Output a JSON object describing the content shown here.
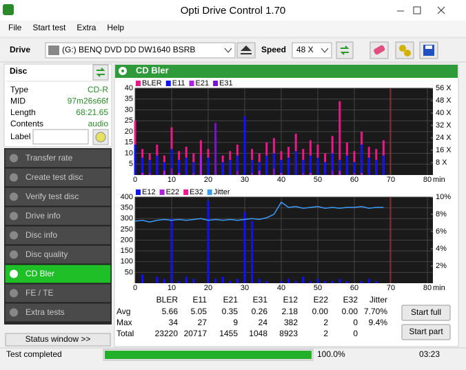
{
  "window": {
    "title": "Opti Drive Control 1.70"
  },
  "menu": [
    "File",
    "Start test",
    "Extra",
    "Help"
  ],
  "drive": {
    "label": "Drive",
    "device": "(G:)   BENQ DVD DD DW1640 BSRB",
    "speed_label": "Speed",
    "speed": "48 X"
  },
  "disc": {
    "header": "Disc",
    "fields": [
      [
        "Type",
        "CD-R"
      ],
      [
        "MID",
        "97m26s66f"
      ],
      [
        "Length",
        "68:21.65"
      ],
      [
        "Contents",
        "audio"
      ]
    ],
    "label_label": "Label"
  },
  "sidebar": {
    "items": [
      "Transfer rate",
      "Create test disc",
      "Verify test disc",
      "Drive info",
      "Disc info",
      "Disc quality",
      "CD Bler",
      "FE / TE",
      "Extra tests"
    ],
    "active": "CD Bler",
    "status_window": "Status window >>"
  },
  "panel_title": "CD Bler",
  "chart_data": [
    {
      "type": "bar",
      "x": [
        0,
        2,
        4,
        6,
        8,
        10,
        12,
        14,
        16,
        18,
        20,
        22,
        24,
        26,
        28,
        30,
        32,
        34,
        36,
        38,
        40,
        42,
        44,
        46,
        48,
        50,
        52,
        54,
        56,
        58,
        60,
        62,
        64,
        66,
        68
      ],
      "xlim": [
        0,
        80
      ],
      "xticks": [
        0,
        10,
        20,
        30,
        40,
        50,
        60,
        70,
        80
      ],
      "xlabel": "min",
      "ylim": [
        0,
        40
      ],
      "yticks": [
        5,
        10,
        15,
        20,
        25,
        30,
        35,
        40
      ],
      "y2lim": [
        0,
        56
      ],
      "y2ticks": [
        {
          "value": 8,
          "label": "8 X"
        },
        {
          "value": 16,
          "label": "16 X"
        },
        {
          "value": 24,
          "label": "24 X"
        },
        {
          "value": 32,
          "label": "32 X"
        },
        {
          "value": 40,
          "label": "40 X"
        },
        {
          "value": 48,
          "label": "48 X"
        },
        {
          "value": 56,
          "label": "56 X"
        }
      ],
      "grid": true,
      "series": [
        {
          "name": "BLER",
          "color": "#f0168c",
          "values": [
            25,
            12,
            10,
            14,
            9,
            22,
            11,
            13,
            10,
            16,
            12,
            18,
            9,
            11,
            14,
            20,
            12,
            10,
            15,
            17,
            11,
            13,
            19,
            12,
            16,
            14,
            10,
            18,
            34,
            15,
            11,
            20,
            13,
            12,
            16
          ]
        },
        {
          "name": "E11",
          "color": "#1010ff",
          "values": [
            14,
            8,
            7,
            9,
            6,
            12,
            7,
            8,
            6,
            9,
            8,
            10,
            6,
            7,
            9,
            27,
            7,
            6,
            9,
            10,
            7,
            8,
            11,
            7,
            9,
            8,
            6,
            10,
            7,
            9,
            6,
            14,
            8,
            7,
            9
          ]
        },
        {
          "name": "E21",
          "color": "#b020e0",
          "values": [
            0,
            1,
            0,
            0,
            2,
            0,
            1,
            0,
            0,
            9,
            0,
            1,
            0,
            0,
            1,
            0,
            0,
            2,
            0,
            0,
            1,
            0,
            0,
            0,
            1,
            0,
            0,
            0,
            2,
            0,
            0,
            1,
            0,
            0,
            0
          ]
        },
        {
          "name": "E31",
          "color": "#7a10d0",
          "values": [
            0,
            0,
            1,
            0,
            0,
            3,
            0,
            0,
            1,
            0,
            0,
            24,
            0,
            0,
            2,
            0,
            1,
            0,
            0,
            3,
            0,
            0,
            0,
            1,
            0,
            0,
            0,
            2,
            0,
            0,
            1,
            0,
            0,
            0,
            0
          ]
        }
      ]
    },
    {
      "type": "bar",
      "x": [
        0,
        2,
        4,
        6,
        8,
        10,
        12,
        14,
        16,
        18,
        20,
        22,
        24,
        26,
        28,
        30,
        32,
        34,
        36,
        38,
        40,
        42,
        44,
        46,
        48,
        50,
        52,
        54,
        56,
        58,
        60,
        62,
        64,
        66,
        68
      ],
      "xlim": [
        0,
        80
      ],
      "xticks": [
        0,
        10,
        20,
        30,
        40,
        50,
        60,
        70,
        80
      ],
      "xlabel": "min",
      "ylim": [
        0,
        400
      ],
      "yticks": [
        50,
        100,
        150,
        200,
        250,
        300,
        350,
        400
      ],
      "y2lim": [
        0,
        10
      ],
      "y2ticks": [
        {
          "value": 2,
          "label": "2%"
        },
        {
          "value": 4,
          "label": "4%"
        },
        {
          "value": 6,
          "label": "6%"
        },
        {
          "value": 8,
          "label": "8%"
        },
        {
          "value": 10,
          "label": "10%"
        }
      ],
      "grid": true,
      "series": [
        {
          "name": "E12",
          "color": "#1010ff",
          "values": [
            0,
            40,
            0,
            30,
            20,
            300,
            10,
            30,
            20,
            0,
            382,
            20,
            30,
            10,
            20,
            330,
            290,
            20,
            10,
            0,
            10,
            20,
            10,
            30,
            10,
            20,
            10,
            10,
            20,
            10,
            0,
            10,
            20,
            10,
            0
          ]
        },
        {
          "name": "E22",
          "color": "#b020e0",
          "values": [
            0,
            0,
            0,
            0,
            0,
            0,
            0,
            0,
            0,
            0,
            0,
            0,
            0,
            0,
            0,
            0,
            0,
            0,
            0,
            0,
            0,
            0,
            0,
            0,
            0,
            0,
            0,
            0,
            0,
            0,
            0,
            0,
            0,
            0,
            0
          ]
        },
        {
          "name": "E32",
          "color": "#f0168c",
          "values": [
            0,
            0,
            0,
            0,
            0,
            0,
            0,
            0,
            0,
            0,
            0,
            0,
            0,
            0,
            0,
            0,
            0,
            0,
            0,
            0,
            0,
            0,
            0,
            0,
            0,
            0,
            0,
            0,
            0,
            0,
            0,
            0,
            0,
            0,
            0
          ]
        },
        {
          "name": "Jitter",
          "color": "#3c9cff",
          "axis": "y2",
          "line": true,
          "values": [
            7.2,
            7.3,
            7.1,
            7.3,
            7.4,
            7.3,
            7.4,
            7.3,
            7.4,
            7.5,
            7.3,
            7.4,
            7.3,
            7.4,
            7.3,
            7.4,
            7.5,
            7.4,
            7.6,
            8.0,
            9.4,
            8.8,
            8.9,
            8.7,
            8.8,
            8.9,
            8.7,
            8.8,
            8.7,
            8.8,
            8.8,
            8.9,
            8.7,
            8.8,
            8.8
          ]
        }
      ]
    }
  ],
  "stats": {
    "columns": [
      "BLER",
      "E11",
      "E21",
      "E31",
      "E12",
      "E22",
      "E32",
      "Jitter"
    ],
    "rows": [
      {
        "label": "Avg",
        "values": [
          "5.66",
          "5.05",
          "0.35",
          "0.26",
          "2.18",
          "0.00",
          "0.00",
          "7.70%"
        ]
      },
      {
        "label": "Max",
        "values": [
          "34",
          "27",
          "9",
          "24",
          "382",
          "2",
          "0",
          "9.4%"
        ]
      },
      {
        "label": "Total",
        "values": [
          "23220",
          "20717",
          "1455",
          "1048",
          "8923",
          "2",
          "0",
          ""
        ]
      }
    ]
  },
  "buttons": [
    "Start full",
    "Start part"
  ],
  "status": {
    "text": "Test completed",
    "progress": "100.0%",
    "time": "03:23"
  }
}
